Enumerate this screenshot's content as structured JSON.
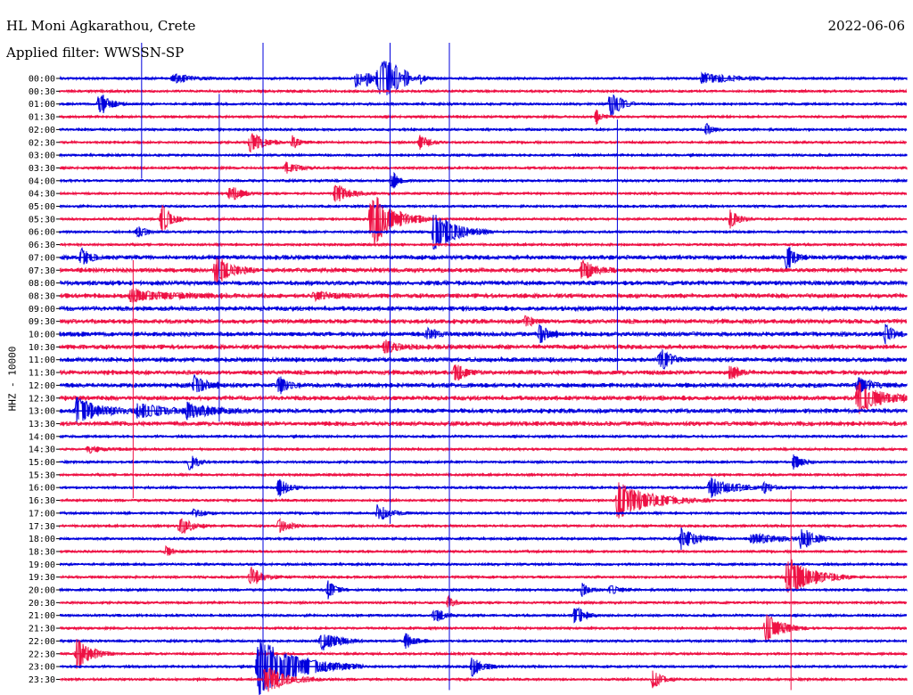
{
  "header": {
    "station": "HL Moni Agkarathou, Crete",
    "filter": "Applied filter: WWSSN-SP",
    "date": "2022-06-06",
    "channel_label": "HHZ - 10000"
  },
  "colors": {
    "trace_a": "#0000dd",
    "trace_b": "#ee1144"
  },
  "chart_data": {
    "type": "line",
    "title": "HL Moni Agkarathou, Crete",
    "subtitle": "Applied filter: WWSSN-SP",
    "date": "2022-06-06",
    "ylabel": "HHZ - 10000",
    "rows": [
      "00:00",
      "00:30",
      "01:00",
      "01:30",
      "02:00",
      "02:30",
      "03:00",
      "03:30",
      "04:00",
      "04:30",
      "05:00",
      "05:30",
      "06:00",
      "06:30",
      "07:00",
      "07:30",
      "08:00",
      "08:30",
      "09:00",
      "09:30",
      "10:00",
      "10:30",
      "11:00",
      "11:30",
      "12:00",
      "12:30",
      "13:00",
      "13:30",
      "14:00",
      "14:30",
      "15:00",
      "15:30",
      "16:00",
      "16:30",
      "17:00",
      "17:30",
      "18:00",
      "18:30",
      "19:00",
      "19:30",
      "20:00",
      "20:30",
      "21:00",
      "21:30",
      "22:00",
      "22:30",
      "23:00",
      "23:30"
    ],
    "row_colors": [
      "trace_a",
      "trace_b"
    ],
    "row_minutes": 30,
    "events": [
      {
        "row": 0,
        "minute": 8,
        "amp": 0.4,
        "dur": 1.2
      },
      {
        "row": 0,
        "minute": 21,
        "amp": 0.9,
        "dur": 0.4
      },
      {
        "row": 0,
        "minute": 22.5,
        "amp": 1.2,
        "dur": 0.5
      },
      {
        "row": 0,
        "minute": 24.5,
        "amp": 0.8,
        "dur": 0.3
      },
      {
        "row": 0,
        "minute": 25.5,
        "amp": 0.6,
        "dur": 0.3
      },
      {
        "row": 0,
        "minute": 23.8,
        "amp": 1.0,
        "dur": 0.3
      },
      {
        "row": 0,
        "minute": 21.8,
        "amp": 0.6,
        "dur": 0.3
      },
      {
        "row": 0,
        "minute": 23.1,
        "amp": 0.7,
        "dur": 0.3
      },
      {
        "row": 0,
        "minute": 22.7,
        "amp": 0.5,
        "dur": 0.3
      },
      {
        "row": 0,
        "minute": 23.2,
        "amp": 0.4,
        "dur": 0.3
      },
      {
        "row": 0,
        "minute": 23.3,
        "amp": 0.4,
        "dur": 0.3
      },
      {
        "row": 0,
        "minute": 23.4,
        "amp": 0.4,
        "dur": 0.3
      },
      {
        "row": 0,
        "minute": 22.9,
        "amp": 0.4,
        "dur": 0.3
      },
      {
        "row": 0,
        "minute": 23.0,
        "amp": 0.4,
        "dur": 0.3
      },
      {
        "row": 0,
        "minute": 22.8,
        "amp": 0.4,
        "dur": 0.3
      },
      {
        "row": 0,
        "minute": 22.6,
        "amp": 0.4,
        "dur": 0.3
      },
      {
        "row": 0,
        "minute": 45.5,
        "amp": 0.5,
        "dur": 1.8
      },
      {
        "row": 2,
        "minute": 2.8,
        "amp": 1.2,
        "dur": 0.6
      },
      {
        "row": 3,
        "minute": 38,
        "amp": 0.6,
        "dur": 0.4
      },
      {
        "row": 2,
        "minute": 39,
        "amp": 1.5,
        "dur": 0.6
      },
      {
        "row": 4,
        "minute": 45.8,
        "amp": 0.6,
        "dur": 0.4
      },
      {
        "row": 5,
        "minute": 13.5,
        "amp": 1.0,
        "dur": 0.8
      },
      {
        "row": 5,
        "minute": 16.5,
        "amp": 0.6,
        "dur": 0.5
      },
      {
        "row": 5,
        "minute": 25.5,
        "amp": 0.8,
        "dur": 0.6
      },
      {
        "row": 7,
        "minute": 16,
        "amp": 0.5,
        "dur": 0.8
      },
      {
        "row": 8,
        "minute": 23.5,
        "amp": 1.0,
        "dur": 0.4
      },
      {
        "row": 9,
        "minute": 12,
        "amp": 0.8,
        "dur": 0.7
      },
      {
        "row": 9,
        "minute": 19.5,
        "amp": 0.9,
        "dur": 0.9
      },
      {
        "row": 11,
        "minute": 7.2,
        "amp": 1.4,
        "dur": 0.6
      },
      {
        "row": 11,
        "minute": 22,
        "amp": 2.6,
        "dur": 1.4
      },
      {
        "row": 11,
        "minute": 47.5,
        "amp": 0.8,
        "dur": 0.6
      },
      {
        "row": 12,
        "minute": 26.5,
        "amp": 1.8,
        "dur": 1.4
      },
      {
        "row": 12,
        "minute": 5.5,
        "amp": 0.5,
        "dur": 0.6
      },
      {
        "row": 14,
        "minute": 1.5,
        "amp": 1.0,
        "dur": 0.5
      },
      {
        "row": 14,
        "minute": 51.5,
        "amp": 1.2,
        "dur": 0.5
      },
      {
        "row": 15,
        "minute": 11,
        "amp": 1.3,
        "dur": 1.0
      },
      {
        "row": 15,
        "minute": 37,
        "amp": 1.0,
        "dur": 0.8
      },
      {
        "row": 17,
        "minute": 5,
        "amp": 0.5,
        "dur": 2.5
      },
      {
        "row": 17,
        "minute": 18,
        "amp": 0.4,
        "dur": 1.2
      },
      {
        "row": 19,
        "minute": 33,
        "amp": 0.5,
        "dur": 0.5
      },
      {
        "row": 20,
        "minute": 26,
        "amp": 0.6,
        "dur": 0.6
      },
      {
        "row": 20,
        "minute": 34,
        "amp": 0.8,
        "dur": 0.6
      },
      {
        "row": 20,
        "minute": 58.5,
        "amp": 1.0,
        "dur": 0.4
      },
      {
        "row": 21,
        "minute": 23,
        "amp": 0.6,
        "dur": 0.8
      },
      {
        "row": 22,
        "minute": 42.5,
        "amp": 1.0,
        "dur": 0.7
      },
      {
        "row": 23,
        "minute": 28,
        "amp": 0.9,
        "dur": 0.6
      },
      {
        "row": 23,
        "minute": 47.5,
        "amp": 0.8,
        "dur": 0.5
      },
      {
        "row": 24,
        "minute": 9.5,
        "amp": 0.8,
        "dur": 0.8
      },
      {
        "row": 24,
        "minute": 15.5,
        "amp": 0.8,
        "dur": 0.6
      },
      {
        "row": 24,
        "minute": 56.5,
        "amp": 0.7,
        "dur": 1.0
      },
      {
        "row": 25,
        "minute": 56.5,
        "amp": 1.4,
        "dur": 1.5
      },
      {
        "row": 26,
        "minute": 1.2,
        "amp": 1.1,
        "dur": 1.5
      },
      {
        "row": 26,
        "minute": 5.5,
        "amp": 0.6,
        "dur": 2.0
      },
      {
        "row": 26,
        "minute": 9,
        "amp": 0.7,
        "dur": 1.5
      },
      {
        "row": 29,
        "minute": 2,
        "amp": 0.3,
        "dur": 1.0
      },
      {
        "row": 30,
        "minute": 9.2,
        "amp": 0.8,
        "dur": 0.5
      },
      {
        "row": 30,
        "minute": 52,
        "amp": 0.8,
        "dur": 0.5
      },
      {
        "row": 32,
        "minute": 15.5,
        "amp": 0.9,
        "dur": 0.6
      },
      {
        "row": 32,
        "minute": 46,
        "amp": 0.9,
        "dur": 1.5
      },
      {
        "row": 32,
        "minute": 49.8,
        "amp": 0.5,
        "dur": 0.6
      },
      {
        "row": 33,
        "minute": 39.5,
        "amp": 1.6,
        "dur": 2.2
      },
      {
        "row": 34,
        "minute": 9.5,
        "amp": 0.5,
        "dur": 0.6
      },
      {
        "row": 34,
        "minute": 22.5,
        "amp": 0.8,
        "dur": 0.8
      },
      {
        "row": 35,
        "minute": 8.5,
        "amp": 1.0,
        "dur": 0.7
      },
      {
        "row": 35,
        "minute": 15.5,
        "amp": 0.7,
        "dur": 0.6
      },
      {
        "row": 36,
        "minute": 44,
        "amp": 1.0,
        "dur": 1.0
      },
      {
        "row": 36,
        "minute": 49,
        "amp": 0.5,
        "dur": 1.8
      },
      {
        "row": 36,
        "minute": 52.5,
        "amp": 1.0,
        "dur": 1.0
      },
      {
        "row": 37,
        "minute": 7.5,
        "amp": 0.4,
        "dur": 0.5
      },
      {
        "row": 39,
        "minute": 13.5,
        "amp": 0.9,
        "dur": 0.8
      },
      {
        "row": 39,
        "minute": 51.5,
        "amp": 1.8,
        "dur": 1.6
      },
      {
        "row": 40,
        "minute": 19,
        "amp": 0.8,
        "dur": 0.5
      },
      {
        "row": 40,
        "minute": 37,
        "amp": 0.6,
        "dur": 0.5
      },
      {
        "row": 40,
        "minute": 39,
        "amp": 0.6,
        "dur": 0.5
      },
      {
        "row": 41,
        "minute": 27.5,
        "amp": 0.5,
        "dur": 0.5
      },
      {
        "row": 42,
        "minute": 26.5,
        "amp": 0.8,
        "dur": 0.6
      },
      {
        "row": 42,
        "minute": 36.5,
        "amp": 0.9,
        "dur": 0.6
      },
      {
        "row": 43,
        "minute": 50,
        "amp": 1.4,
        "dur": 1.0
      },
      {
        "row": 44,
        "minute": 18.5,
        "amp": 1.0,
        "dur": 1.0
      },
      {
        "row": 44,
        "minute": 24.5,
        "amp": 0.7,
        "dur": 0.6
      },
      {
        "row": 45,
        "minute": 1.2,
        "amp": 1.4,
        "dur": 0.9
      },
      {
        "row": 46,
        "minute": 14,
        "amp": 2.6,
        "dur": 2.5
      },
      {
        "row": 46,
        "minute": 29.2,
        "amp": 0.8,
        "dur": 0.7
      },
      {
        "row": 47,
        "minute": 14.5,
        "amp": 1.2,
        "dur": 1.4
      },
      {
        "row": 47,
        "minute": 42,
        "amp": 0.8,
        "dur": 0.6
      }
    ],
    "spikes": [
      {
        "minute": 5.8,
        "row_start": 0,
        "row_end": 8,
        "amp": 0.3
      },
      {
        "minute": 14.4,
        "row_start": 0,
        "row_end": 48,
        "amp": 0.2
      },
      {
        "minute": 23.4,
        "row_start": 0,
        "row_end": 35,
        "amp": 0.2
      },
      {
        "minute": 27.6,
        "row_start": 0,
        "row_end": 48,
        "amp": 0.2
      },
      {
        "minute": 11.3,
        "row_start": 4,
        "row_end": 27,
        "amp": 0.2
      },
      {
        "minute": 39.5,
        "row_start": 6,
        "row_end": 23,
        "amp": 0.2
      },
      {
        "minute": 51.8,
        "row_start": 35,
        "row_end": 48,
        "amp": 0.2
      },
      {
        "minute": 5.2,
        "row_start": 17,
        "row_end": 33,
        "amp": 0.2
      }
    ]
  }
}
